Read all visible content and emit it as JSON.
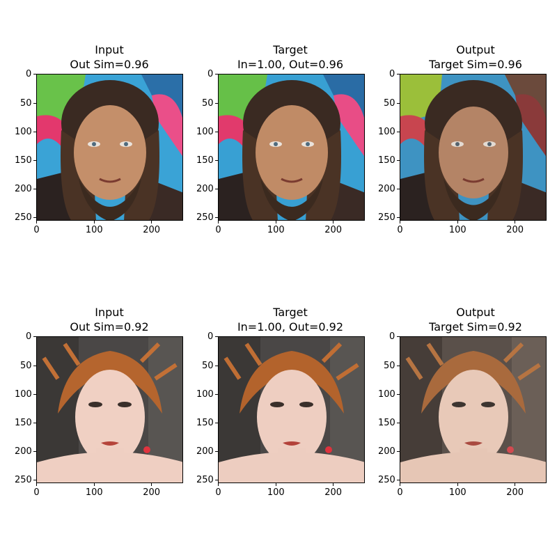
{
  "figure": {
    "rows": [
      {
        "panels": [
          {
            "role": "input",
            "title_line1": "Input",
            "title_line2": "Out Sim=0.96",
            "subject": "man-long-hair-goatee-graffiti-bg"
          },
          {
            "role": "target",
            "title_line1": "Target",
            "title_line2": "In=1.00, Out=0.96",
            "subject": "man-long-hair-goatee-graffiti-bg"
          },
          {
            "role": "output",
            "title_line1": "Output",
            "title_line2": "Target Sim=0.96",
            "subject": "man-long-hair-goatee-graffiti-bg"
          }
        ]
      },
      {
        "panels": [
          {
            "role": "input",
            "title_line1": "Input",
            "title_line2": "Out Sim=0.92",
            "subject": "woman-red-hair-updo-dark-bg"
          },
          {
            "role": "target",
            "title_line1": "Target",
            "title_line2": "In=1.00, Out=0.92",
            "subject": "woman-red-hair-updo-dark-bg"
          },
          {
            "role": "output",
            "title_line1": "Output",
            "title_line2": "Target Sim=0.92",
            "subject": "woman-red-hair-updo-dark-bg"
          }
        ]
      }
    ],
    "axis": {
      "y_ticks": [
        "0",
        "50",
        "100",
        "150",
        "200",
        "250"
      ],
      "x_ticks": [
        "0",
        "100",
        "200"
      ]
    },
    "colors": {
      "background": "#ffffff",
      "axis": "#000000"
    }
  }
}
